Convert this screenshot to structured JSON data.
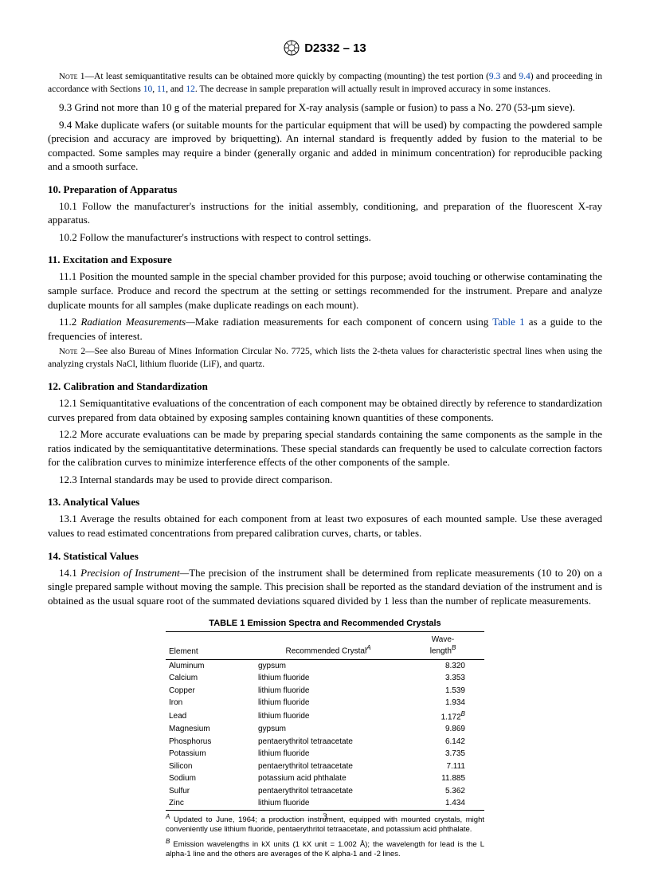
{
  "header": {
    "designation": "D2332 – 13"
  },
  "content": {
    "note1_label": "Note",
    "note1_num": " 1—",
    "note1_a": "At least semiquantitative results can be obtained more quickly by compacting (mounting) the test portion (",
    "note1_link1": "9.3",
    "note1_b": " and ",
    "note1_link2": "9.4",
    "note1_c": ") and proceeding in accordance with Sections ",
    "note1_link3": "10",
    "note1_d": ", ",
    "note1_link4": "11",
    "note1_e": ", and ",
    "note1_link5": "12",
    "note1_f": ". The decrease in sample preparation will actually result in improved accuracy in some instances.",
    "p93": "9.3 Grind not more than 10 g of the material prepared for X-ray analysis (sample or fusion) to pass a No. 270 (53-µm sieve).",
    "p94": "9.4 Make duplicate wafers (or suitable mounts for the particular equipment that will be used) by compacting the powdered sample (precision and accuracy are improved by briquetting). An internal standard is frequently added by fusion to the material to be compacted. Some samples may require a binder (generally organic and added in minimum concentration) for reproducible packing and a smooth surface.",
    "s10": "10. Preparation of Apparatus",
    "p101": "10.1 Follow the manufacturer's instructions for the initial assembly, conditioning, and preparation of the fluorescent X-ray apparatus.",
    "p102": "10.2 Follow the manufacturer's instructions with respect to control settings.",
    "s11": "11. Excitation and Exposure",
    "p111": "11.1 Position the mounted sample in the special chamber provided for this purpose; avoid touching or otherwise contaminating the sample surface. Produce and record the spectrum at the setting or settings recommended for the instrument. Prepare and analyze duplicate mounts for all samples (make duplicate readings on each mount).",
    "p112_num": "11.2 ",
    "p112_italic": "Radiation Measurements—",
    "p112_a": "Make radiation measurements for each component of concern using ",
    "p112_link": "Table 1",
    "p112_b": " as a guide to the frequencies of interest.",
    "note2_label": "Note",
    "note2_num": " 2—",
    "note2": "See also Bureau of Mines Information Circular No. 7725, which lists the 2-theta values for characteristic spectral lines when using the analyzing crystals NaCl, lithium fluoride (LiF), and quartz.",
    "s12": "12. Calibration and Standardization",
    "p121": "12.1 Semiquantitative evaluations of the concentration of each component may be obtained directly by reference to standardization curves prepared from data obtained by exposing samples containing known quantities of these components.",
    "p122": "12.2 More accurate evaluations can be made by preparing special standards containing the same components as the sample in the ratios indicated by the semiquantitative determinations. These special standards can frequently be used to calculate correction factors for the calibration curves to minimize interference effects of the other components of the sample.",
    "p123": "12.3 Internal standards may be used to provide direct comparison.",
    "s13": "13. Analytical Values",
    "p131": "13.1 Average the results obtained for each component from at least two exposures of each mounted sample. Use these averaged values to read estimated concentrations from prepared calibration curves, charts, or tables.",
    "s14": "14. Statistical Values",
    "p141_num": "14.1 ",
    "p141_italic": "Precision of Instrument—",
    "p141": "The precision of the instrument shall be determined from replicate measurements (10 to 20) on a single prepared sample without moving the sample. This precision shall be reported as the standard deviation of the instrument and is obtained as the usual square root of the summated deviations squared divided by 1 less than the number of replicate measurements."
  },
  "table": {
    "title": "TABLE 1 Emission Spectra and Recommended Crystals",
    "col1": "Element",
    "col2": "Recommended Crystal",
    "col2_sup": "A",
    "col3_a": "Wave-",
    "col3_b": "length",
    "col3_sup": "B",
    "rows": [
      {
        "e": "Aluminum",
        "c": "gypsum",
        "w": "8.320"
      },
      {
        "e": "Calcium",
        "c": "lithium fluoride",
        "w": "3.353"
      },
      {
        "e": "Copper",
        "c": "lithium fluoride",
        "w": "1.539"
      },
      {
        "e": "Iron",
        "c": "lithium fluoride",
        "w": "1.934"
      },
      {
        "e": "Lead",
        "c": "lithium fluoride",
        "w": "1.172",
        "sup": "B"
      },
      {
        "e": "Magnesium",
        "c": "gypsum",
        "w": "9.869"
      },
      {
        "e": "Phosphorus",
        "c": "pentaerythritol tetraacetate",
        "w": "6.142"
      },
      {
        "e": "Potassium",
        "c": "lithium fluoride",
        "w": "3.735"
      },
      {
        "e": "Silicon",
        "c": "pentaerythritol tetraacetate",
        "w": "7.111"
      },
      {
        "e": "Sodium",
        "c": "potassium acid phthalate",
        "w": "11.885"
      },
      {
        "e": "Sulfur",
        "c": "pentaerythritol tetraacetate",
        "w": "5.362"
      },
      {
        "e": "Zinc",
        "c": "lithium fluoride",
        "w": "1.434"
      }
    ],
    "footA_sup": "A",
    "footA": " Updated to June, 1964; a production instrument, equipped with mounted crystals, might conveniently use lithium fluoride, pentaerythritol tetraacetate, and potassium acid phthalate.",
    "footB_sup": "B",
    "footB": " Emission wavelengths in kX units (1 kX unit = 1.002 Å); the wavelength for lead is the L alpha-1 line and the others are averages of the K alpha-1 and -2 lines."
  },
  "page_number": "3"
}
